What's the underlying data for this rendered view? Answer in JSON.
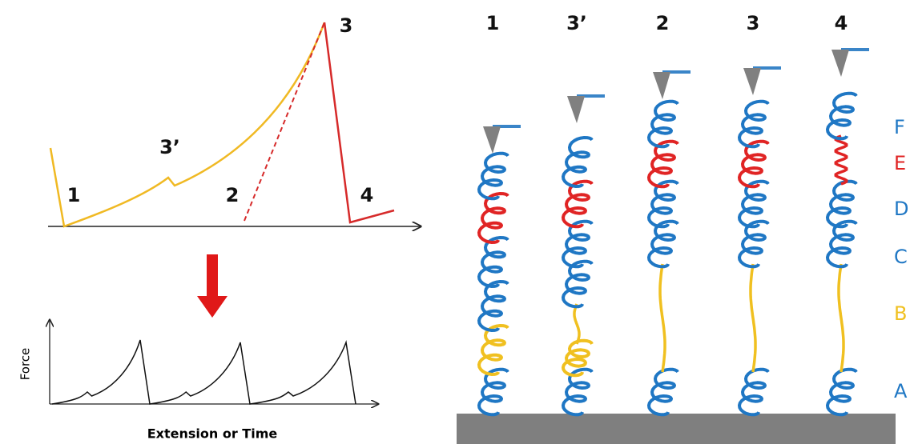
{
  "force_curve": {
    "peak_labels": [
      "1",
      "3’",
      "2",
      "3",
      "4"
    ]
  },
  "sawtooth": {
    "y_label": "Force",
    "x_label": "Extension or Time"
  },
  "columns": [
    "1",
    "3’",
    "2",
    "3",
    "4"
  ],
  "domains": [
    "F",
    "E",
    "D",
    "C",
    "B",
    "A"
  ]
}
